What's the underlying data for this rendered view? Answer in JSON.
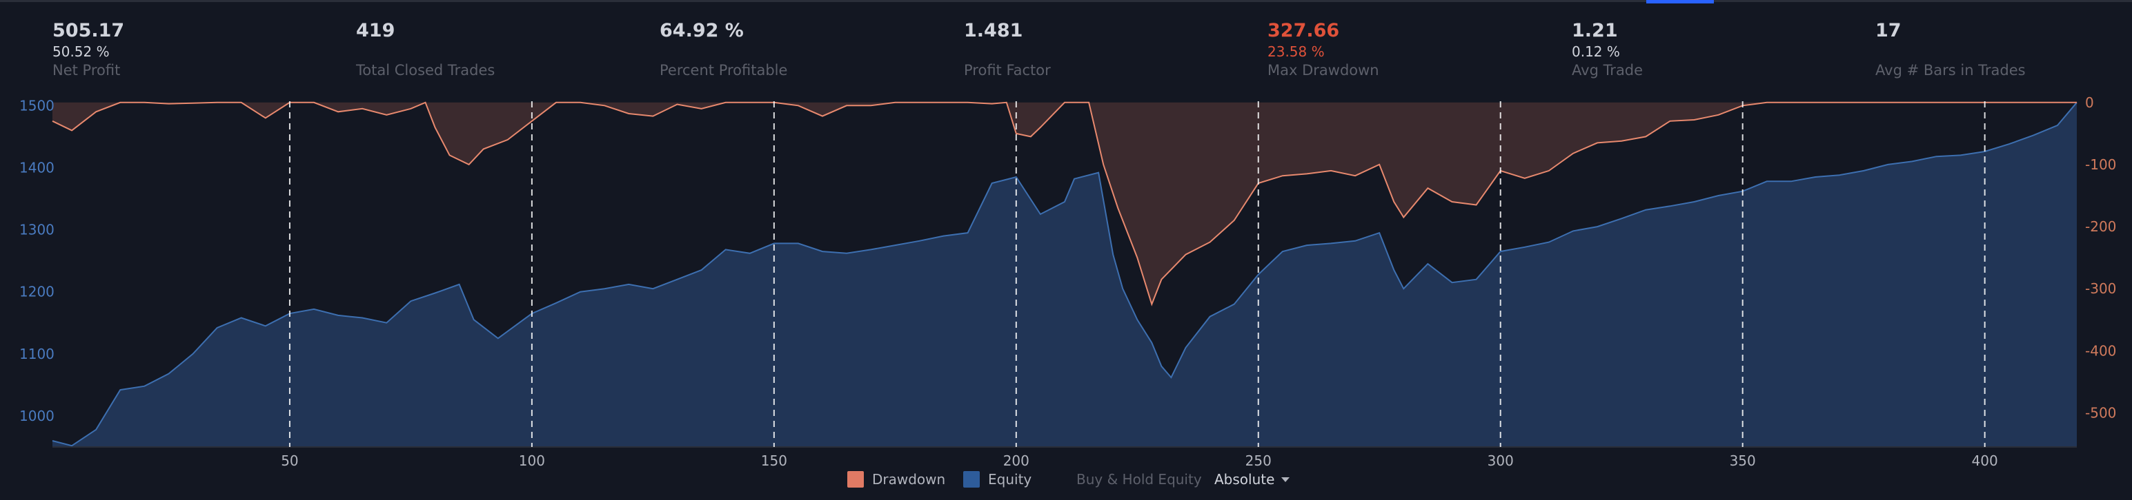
{
  "stats": [
    {
      "value": "505.17",
      "sub": "50.52 %",
      "label": "Net Profit",
      "color": "#d1d4dc"
    },
    {
      "value": "419",
      "sub": "",
      "label": "Total Closed Trades",
      "color": "#d1d4dc"
    },
    {
      "value": "64.92 %",
      "sub": "",
      "label": "Percent Profitable",
      "color": "#d1d4dc"
    },
    {
      "value": "1.481",
      "sub": "",
      "label": "Profit Factor",
      "color": "#d1d4dc"
    },
    {
      "value": "327.66",
      "sub": "23.58 %",
      "label": "Max Drawdown",
      "color": "#e0523a"
    },
    {
      "value": "1.21",
      "sub": "0.12 %",
      "label": "Avg Trade",
      "color": "#d1d4dc"
    },
    {
      "value": "17",
      "sub": "",
      "label": "Avg # Bars in Trades",
      "color": "#d1d4dc"
    }
  ],
  "legend": {
    "drawdown": "Drawdown",
    "equity": "Equity",
    "buy_hold": "Buy & Hold Equity",
    "mode": "Absolute"
  },
  "colors": {
    "background": "#131722",
    "equity_line": "#3d6fb0",
    "equity_fill": "#213556",
    "drawdown_line": "#e8896e",
    "drawdown_fill": "#3b2a2e",
    "left_axis_text": "#4a7bc0",
    "right_axis_text": "#d07a5c",
    "x_axis_text": "#b2b5be",
    "grid_line": "#ffffff"
  },
  "chart_data": {
    "type": "area",
    "x_ticks": [
      50,
      100,
      150,
      200,
      250,
      300,
      350,
      400
    ],
    "xlim": [
      1,
      419
    ],
    "left_axis": {
      "series": "Equity",
      "ticks": [
        1000,
        1100,
        1200,
        1300,
        1400,
        1500
      ],
      "ylim": [
        950,
        1507
      ]
    },
    "right_axis": {
      "series": "Drawdown",
      "ticks": [
        0,
        -100,
        -200,
        -300,
        -400,
        -500
      ],
      "ylim": [
        -555,
        2
      ]
    },
    "vertical_grid": "dashed at each x tick",
    "series": [
      {
        "name": "Equity",
        "axis": "left",
        "points": [
          [
            1,
            960
          ],
          [
            5,
            952
          ],
          [
            10,
            978
          ],
          [
            15,
            1042
          ],
          [
            20,
            1048
          ],
          [
            25,
            1068
          ],
          [
            30,
            1100
          ],
          [
            35,
            1142
          ],
          [
            40,
            1158
          ],
          [
            45,
            1145
          ],
          [
            50,
            1165
          ],
          [
            55,
            1172
          ],
          [
            60,
            1162
          ],
          [
            65,
            1158
          ],
          [
            70,
            1150
          ],
          [
            75,
            1185
          ],
          [
            80,
            1198
          ],
          [
            85,
            1212
          ],
          [
            88,
            1155
          ],
          [
            93,
            1125
          ],
          [
            100,
            1165
          ],
          [
            105,
            1182
          ],
          [
            110,
            1200
          ],
          [
            115,
            1205
          ],
          [
            120,
            1212
          ],
          [
            125,
            1205
          ],
          [
            130,
            1220
          ],
          [
            135,
            1235
          ],
          [
            140,
            1268
          ],
          [
            145,
            1262
          ],
          [
            150,
            1278
          ],
          [
            155,
            1278
          ],
          [
            160,
            1265
          ],
          [
            165,
            1262
          ],
          [
            170,
            1268
          ],
          [
            175,
            1275
          ],
          [
            180,
            1282
          ],
          [
            185,
            1290
          ],
          [
            190,
            1295
          ],
          [
            195,
            1375
          ],
          [
            200,
            1385
          ],
          [
            205,
            1325
          ],
          [
            210,
            1345
          ],
          [
            212,
            1382
          ],
          [
            217,
            1392
          ],
          [
            220,
            1260
          ],
          [
            222,
            1205
          ],
          [
            225,
            1155
          ],
          [
            228,
            1118
          ],
          [
            230,
            1080
          ],
          [
            232,
            1062
          ],
          [
            235,
            1110
          ],
          [
            240,
            1160
          ],
          [
            245,
            1180
          ],
          [
            250,
            1228
          ],
          [
            255,
            1265
          ],
          [
            260,
            1275
          ],
          [
            265,
            1278
          ],
          [
            270,
            1282
          ],
          [
            275,
            1295
          ],
          [
            278,
            1235
          ],
          [
            280,
            1205
          ],
          [
            285,
            1245
          ],
          [
            290,
            1215
          ],
          [
            295,
            1220
          ],
          [
            300,
            1265
          ],
          [
            305,
            1272
          ],
          [
            310,
            1280
          ],
          [
            315,
            1298
          ],
          [
            320,
            1305
          ],
          [
            325,
            1318
          ],
          [
            330,
            1332
          ],
          [
            335,
            1338
          ],
          [
            340,
            1345
          ],
          [
            345,
            1355
          ],
          [
            350,
            1362
          ],
          [
            355,
            1378
          ],
          [
            360,
            1378
          ],
          [
            365,
            1385
          ],
          [
            370,
            1388
          ],
          [
            375,
            1395
          ],
          [
            380,
            1405
          ],
          [
            385,
            1410
          ],
          [
            390,
            1418
          ],
          [
            395,
            1420
          ],
          [
            400,
            1426
          ],
          [
            405,
            1438
          ],
          [
            410,
            1452
          ],
          [
            415,
            1468
          ],
          [
            419,
            1505
          ]
        ]
      },
      {
        "name": "Drawdown",
        "axis": "right",
        "points": [
          [
            1,
            -30
          ],
          [
            5,
            -45
          ],
          [
            10,
            -15
          ],
          [
            15,
            0
          ],
          [
            20,
            0
          ],
          [
            25,
            -2
          ],
          [
            30,
            -1
          ],
          [
            35,
            0
          ],
          [
            40,
            0
          ],
          [
            45,
            -25
          ],
          [
            50,
            0
          ],
          [
            55,
            0
          ],
          [
            60,
            -15
          ],
          [
            65,
            -10
          ],
          [
            70,
            -20
          ],
          [
            75,
            -10
          ],
          [
            78,
            0
          ],
          [
            80,
            -40
          ],
          [
            83,
            -85
          ],
          [
            87,
            -100
          ],
          [
            90,
            -75
          ],
          [
            95,
            -60
          ],
          [
            100,
            -30
          ],
          [
            105,
            0
          ],
          [
            110,
            0
          ],
          [
            115,
            -5
          ],
          [
            120,
            -18
          ],
          [
            125,
            -22
          ],
          [
            130,
            -3
          ],
          [
            135,
            -10
          ],
          [
            140,
            0
          ],
          [
            145,
            0
          ],
          [
            150,
            0
          ],
          [
            155,
            -5
          ],
          [
            160,
            -22
          ],
          [
            165,
            -5
          ],
          [
            170,
            -5
          ],
          [
            175,
            0
          ],
          [
            180,
            0
          ],
          [
            185,
            0
          ],
          [
            190,
            0
          ],
          [
            195,
            -2
          ],
          [
            198,
            0
          ],
          [
            200,
            -50
          ],
          [
            203,
            -55
          ],
          [
            205,
            -40
          ],
          [
            210,
            0
          ],
          [
            215,
            0
          ],
          [
            218,
            -100
          ],
          [
            221,
            -170
          ],
          [
            225,
            -250
          ],
          [
            228,
            -325
          ],
          [
            230,
            -285
          ],
          [
            235,
            -245
          ],
          [
            240,
            -225
          ],
          [
            245,
            -190
          ],
          [
            250,
            -130
          ],
          [
            255,
            -118
          ],
          [
            260,
            -115
          ],
          [
            265,
            -110
          ],
          [
            270,
            -118
          ],
          [
            275,
            -100
          ],
          [
            278,
            -160
          ],
          [
            280,
            -185
          ],
          [
            285,
            -138
          ],
          [
            290,
            -160
          ],
          [
            295,
            -165
          ],
          [
            300,
            -110
          ],
          [
            305,
            -122
          ],
          [
            310,
            -110
          ],
          [
            315,
            -82
          ],
          [
            320,
            -65
          ],
          [
            325,
            -62
          ],
          [
            330,
            -55
          ],
          [
            335,
            -30
          ],
          [
            340,
            -28
          ],
          [
            345,
            -20
          ],
          [
            350,
            -5
          ],
          [
            355,
            0
          ],
          [
            360,
            0
          ],
          [
            365,
            0
          ],
          [
            370,
            0
          ],
          [
            375,
            0
          ],
          [
            380,
            0
          ],
          [
            385,
            0
          ],
          [
            390,
            0
          ],
          [
            395,
            0
          ],
          [
            400,
            0
          ],
          [
            405,
            0
          ],
          [
            410,
            0
          ],
          [
            415,
            0
          ],
          [
            419,
            0
          ]
        ]
      }
    ]
  }
}
